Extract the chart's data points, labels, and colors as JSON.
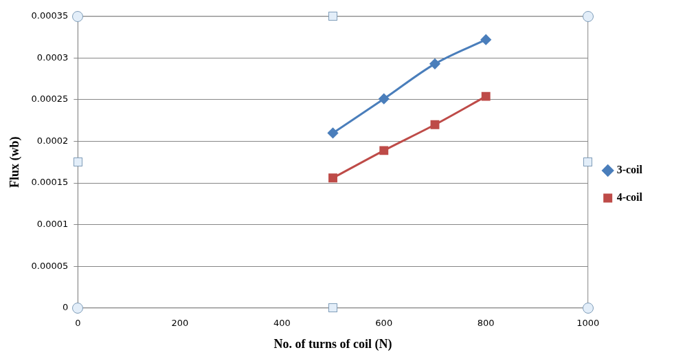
{
  "chart_data": {
    "type": "line",
    "xlabel": "No. of turns of coil (N)",
    "ylabel": "Flux (wb)",
    "x": [
      500,
      600,
      700,
      800
    ],
    "series": [
      {
        "name": "3-coil",
        "color": "#4a7ebb",
        "marker": "diamond",
        "values": [
          0.00021,
          0.000251,
          0.000293,
          0.000322
        ]
      },
      {
        "name": "4-coil",
        "color": "#be4b48",
        "marker": "square",
        "values": [
          0.000156,
          0.000189,
          0.00022,
          0.000254
        ]
      }
    ],
    "xlim": [
      0,
      1000
    ],
    "xticks": [
      0,
      200,
      400,
      600,
      800,
      1000
    ],
    "ylim": [
      0,
      0.00035
    ],
    "yticks": [
      0,
      {
        "value": 5e-05,
        "label": "0.00005"
      },
      0.0001,
      0.00015,
      0.0002,
      0.00025,
      0.0003,
      0.00035
    ],
    "grid": "y",
    "legend": "right",
    "line_style": "solid"
  }
}
